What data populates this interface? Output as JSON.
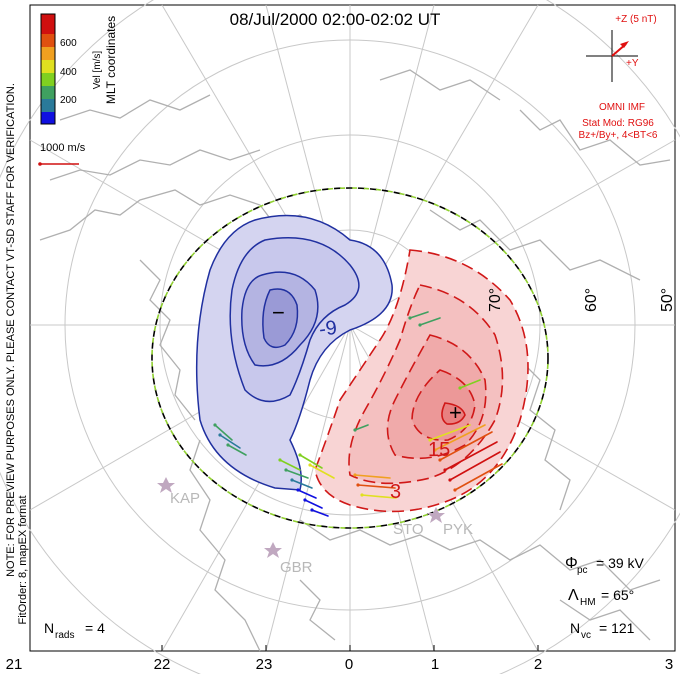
{
  "title": "08/Jul/2000 02:00-02:02 UT",
  "colorbar": {
    "label": "Vel [m/s]",
    "ticks": [
      "600",
      "400",
      "200"
    ],
    "colors": [
      "#1010e0",
      "#2a7a9a",
      "#3fa060",
      "#80d020",
      "#e0e020",
      "#f0a020",
      "#e05010",
      "#d01010"
    ]
  },
  "coordinates_label": "MLT coordinates",
  "scale_vector_label": "1000 m/s",
  "imf": {
    "z_label": "+Z (5 nT)",
    "y_label": "+Y",
    "source": "OMNI IMF",
    "model": "Stat Mod: RG96",
    "conditions": "Bz+/By+, 4<BT<6"
  },
  "side_note": "NOTE: FOR PREVIEW PURPOSES ONLY. PLEASE CONTACT VT-SD STAFF FOR VERIFICATION.",
  "fit_note": "FitOrder: 8, mapEX format",
  "lat_labels": [
    "70°",
    "60°",
    "50°"
  ],
  "contour_labels": {
    "neg": "-9",
    "pos1": "15",
    "pos2": "3",
    "min_mark": "−",
    "max_mark": "+"
  },
  "stations": [
    {
      "name": "KAP",
      "icon": "station-star-icon"
    },
    {
      "name": "GBR",
      "icon": "station-star-icon"
    },
    {
      "name": "STO",
      "icon": "station-star-icon"
    },
    {
      "name": "PYK",
      "icon": "station-star-icon"
    }
  ],
  "stats": {
    "phi_symbol": "Φ",
    "phi_sub": "pc",
    "phi_value": "= 39 kV",
    "lambda_symbol": "Λ",
    "lambda_sub": "HM",
    "lambda_value": "= 65°",
    "nvc_symbol": "N",
    "nvc_sub": "vc",
    "nvc_value": "= 121",
    "nrads_symbol": "N",
    "nrads_sub": "rads",
    "nrads_value": "= 4"
  },
  "mlt_labels": [
    "21",
    "22",
    "23",
    "0",
    "1",
    "2",
    "3"
  ],
  "colors": {
    "neg_contour": "#2030a0",
    "pos_contour": "#d01818",
    "neg_fill": "#c8c8ec",
    "pos_fill": "#f2b8b8",
    "grid": "#c8c8c8",
    "coast": "#b0b0b0",
    "imf_red": "#e01010"
  }
}
